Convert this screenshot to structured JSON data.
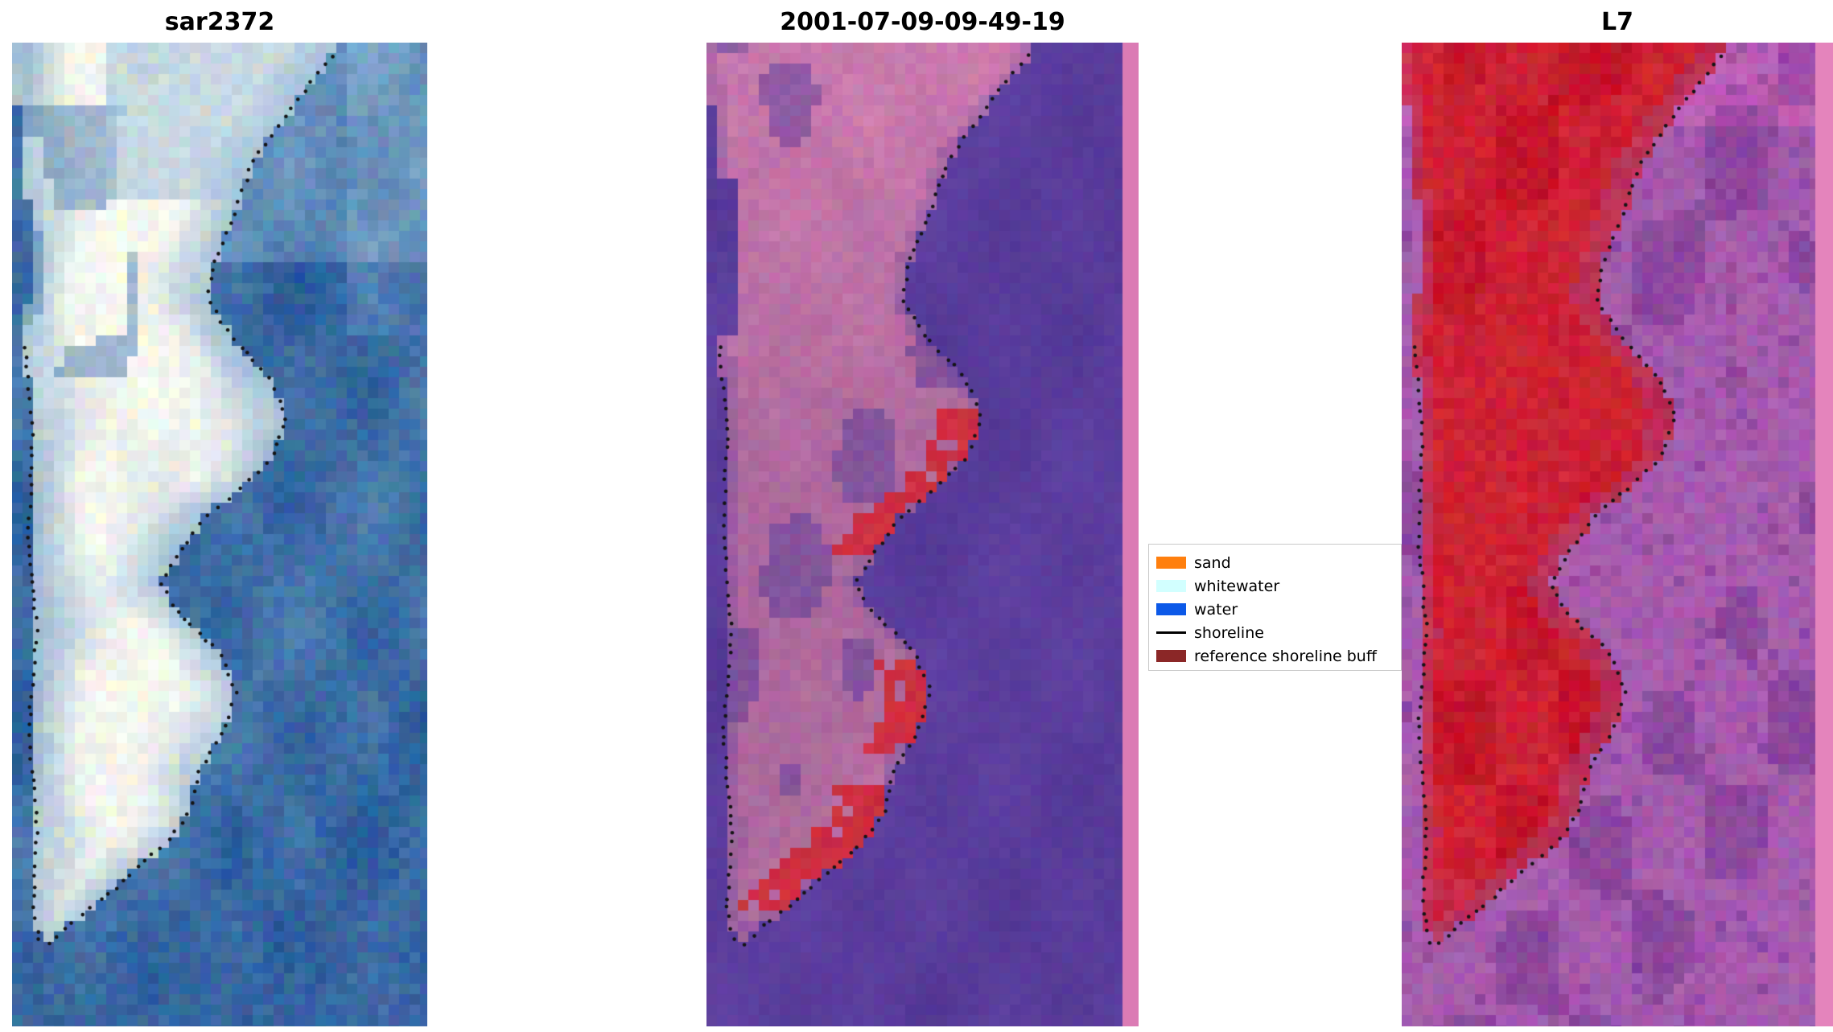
{
  "panels": [
    {
      "title": "sar2372",
      "kind": "sar",
      "palette": {
        "land": "#f3f6f1",
        "land_edge": "#a2bed6",
        "water": "#3c6ca4",
        "water_light": "#7da4c8"
      }
    },
    {
      "title": "2001-07-09-09-49-19",
      "kind": "classification",
      "palette": {
        "water": "#5a3d9c",
        "land": "#ae6a9e",
        "land_top": "#d581b3",
        "red_patch": "#ce3042",
        "edge_strip": "#db7bb4"
      }
    },
    {
      "title": "L7",
      "kind": "l7",
      "palette": {
        "land": "#ce2234",
        "water": "#a75cae",
        "water_dark": "#803e96",
        "edge_strip": "#e484bc"
      }
    }
  ],
  "legend": {
    "entries": [
      {
        "label": "sand",
        "color": "#ff7f0e",
        "type": "patch"
      },
      {
        "label": "whitewater",
        "color": "#d2ffff",
        "type": "patch"
      },
      {
        "label": "water",
        "color": "#0c59e8",
        "type": "patch"
      },
      {
        "label": "shoreline",
        "color": "#000000",
        "type": "line"
      },
      {
        "label": "reference shoreline buff",
        "color": "#8b2727",
        "type": "patch"
      }
    ]
  },
  "shoreline_color": "#141414",
  "chart_data": {
    "type": "heatmap",
    "title": "",
    "panel_titles": [
      "sar2372",
      "2001-07-09-09-49-19",
      "L7"
    ],
    "legend_entries": [
      "sand",
      "whitewater",
      "water",
      "shoreline",
      "reference shoreline buff"
    ],
    "shoreline_right": [
      [
        0.0,
        0.8
      ],
      [
        0.04,
        0.72
      ],
      [
        0.08,
        0.65
      ],
      [
        0.12,
        0.58
      ],
      [
        0.17,
        0.54
      ],
      [
        0.22,
        0.49
      ],
      [
        0.26,
        0.47
      ],
      [
        0.3,
        0.53
      ],
      [
        0.34,
        0.62
      ],
      [
        0.38,
        0.66
      ],
      [
        0.42,
        0.63
      ],
      [
        0.45,
        0.56
      ],
      [
        0.48,
        0.47
      ],
      [
        0.52,
        0.4
      ],
      [
        0.55,
        0.36
      ],
      [
        0.58,
        0.4
      ],
      [
        0.62,
        0.5
      ],
      [
        0.66,
        0.54
      ],
      [
        0.7,
        0.51
      ],
      [
        0.74,
        0.45
      ],
      [
        0.78,
        0.43
      ],
      [
        0.81,
        0.38
      ],
      [
        0.84,
        0.3
      ],
      [
        0.87,
        0.22
      ],
      [
        0.9,
        0.13
      ],
      [
        0.92,
        0.08
      ]
    ],
    "shoreline_left": [
      [
        0.0,
        0.0
      ],
      [
        0.1,
        0.02
      ],
      [
        0.2,
        0.05
      ],
      [
        0.3,
        0.03
      ],
      [
        0.4,
        0.05
      ],
      [
        0.5,
        0.04
      ],
      [
        0.6,
        0.06
      ],
      [
        0.7,
        0.04
      ],
      [
        0.8,
        0.06
      ],
      [
        0.88,
        0.05
      ],
      [
        0.92,
        0.07
      ]
    ]
  }
}
